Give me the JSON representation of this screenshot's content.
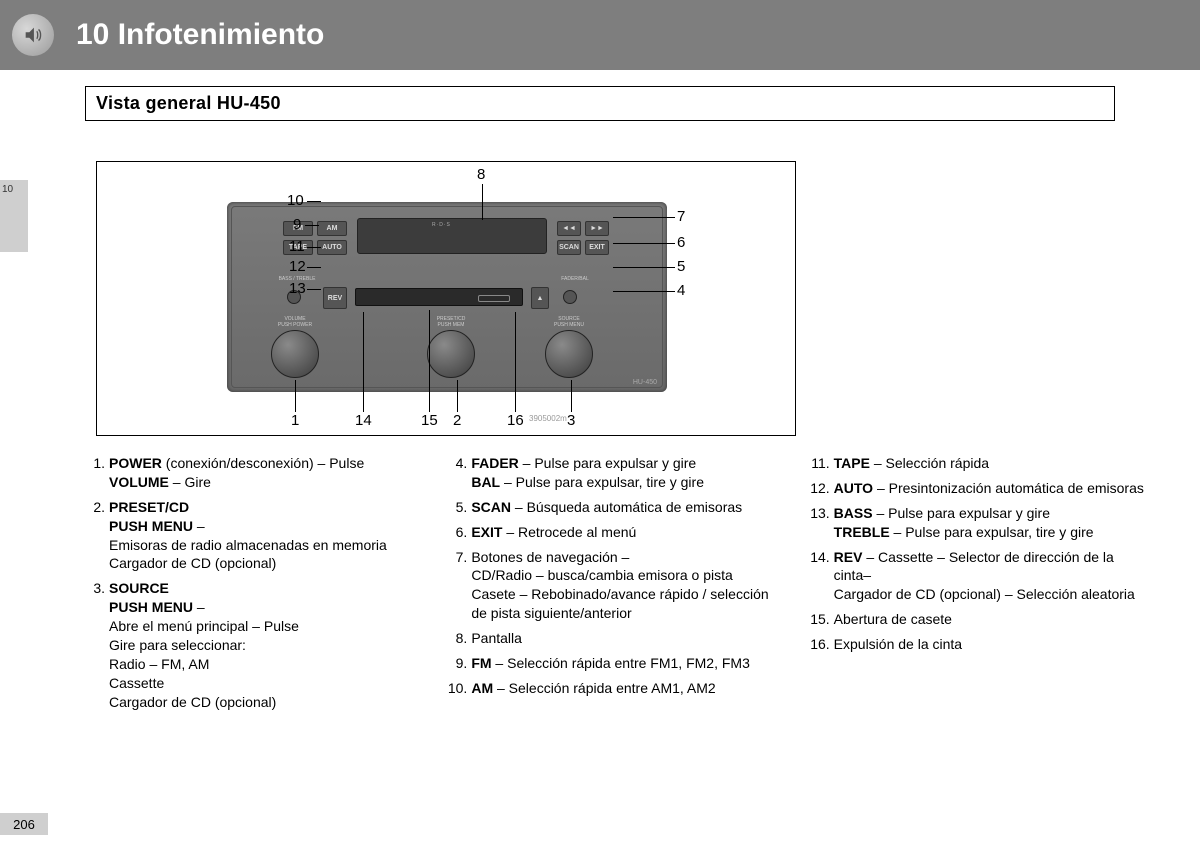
{
  "header": {
    "chapter": "10 Infotenimiento"
  },
  "subhead": "Vista general HU-450",
  "side_tab": "10",
  "page_number": "206",
  "diagram": {
    "model_label": "HU-450",
    "watermark": "3905002m",
    "display_badge": "R·D·S",
    "buttons": {
      "fm": "FM",
      "am": "AM",
      "tape": "TAPE",
      "auto": "AUTO",
      "rev": "REV",
      "scan": "SCAN",
      "exit": "EXIT",
      "prev": "◄◄",
      "next": "►►"
    },
    "knobs": {
      "volume": "VOLUME\nPUSH POWER",
      "preset": "PRESET/CD\nPUSH MEM",
      "source": "SOURCE\nPUSH MENU",
      "bass": "BASS / TREBLE",
      "fader": "FADER/BAL"
    },
    "eject": "▲",
    "callouts": [
      "1",
      "2",
      "3",
      "4",
      "5",
      "6",
      "7",
      "8",
      "9",
      "10",
      "11",
      "12",
      "13",
      "14",
      "15",
      "16"
    ]
  },
  "columns": [
    [
      {
        "n": "1.",
        "bold": [
          "POWER"
        ],
        "after_bold": " (conexión/desconexión) – Pulse",
        "lines": [
          {
            "bold": "VOLUME",
            "text": " – Gire"
          }
        ]
      },
      {
        "n": "2.",
        "bold": [
          "PRESET/CD"
        ],
        "lines": [
          {
            "bold": "PUSH MENU",
            "text": " –"
          },
          {
            "text": "Emisoras de radio almacenadas en memoria"
          },
          {
            "text": "Cargador de CD (opcional)"
          }
        ]
      },
      {
        "n": "3.",
        "bold": [
          "SOURCE"
        ],
        "lines": [
          {
            "bold": "PUSH MENU",
            "text": " –"
          },
          {
            "text": "Abre el menú principal – Pulse"
          },
          {
            "text": "Gire para seleccionar:"
          },
          {
            "text": "Radio – FM, AM"
          },
          {
            "text": "Cassette"
          },
          {
            "text": "Cargador de CD (opcional)"
          }
        ]
      }
    ],
    [
      {
        "n": "4.",
        "bold": [
          "FADER"
        ],
        "after_bold": " – Pulse para expulsar y gire",
        "lines": [
          {
            "bold": "BAL",
            "text": " – Pulse para expulsar, tire y gire"
          }
        ]
      },
      {
        "n": "5.",
        "bold": [
          "SCAN"
        ],
        "after_bold": " – Búsqueda automática de emisoras"
      },
      {
        "n": "6.",
        "bold": [
          "EXIT"
        ],
        "after_bold": " – Retrocede al menú"
      },
      {
        "n": "7.",
        "after_bold": "Botones de navegación –",
        "lines": [
          {
            "text": "CD/Radio – busca/cambia emisora o pista"
          },
          {
            "text": "Casete – Rebobinado/avance rápido / selección de pista siguiente/anterior"
          }
        ]
      },
      {
        "n": "8.",
        "after_bold": "Pantalla"
      },
      {
        "n": "9.",
        "bold": [
          "FM"
        ],
        "after_bold": " – Selección rápida entre FM1, FM2, FM3"
      },
      {
        "n": "10.",
        "bold": [
          "AM"
        ],
        "after_bold": " – Selección rápida entre AM1, AM2"
      }
    ],
    [
      {
        "n": "11.",
        "bold": [
          "TAPE"
        ],
        "after_bold": " – Selección rápida"
      },
      {
        "n": "12.",
        "bold": [
          "AUTO"
        ],
        "after_bold": " – Presintonización automática de emisoras"
      },
      {
        "n": "13.",
        "bold": [
          "BASS"
        ],
        "after_bold": " – Pulse para expulsar y gire",
        "lines": [
          {
            "bold": "TREBLE",
            "text": " – Pulse para expulsar, tire y gire"
          }
        ]
      },
      {
        "n": "14.",
        "bold": [
          "REV"
        ],
        "after_bold": " – Cassette – Selector de dirección de la cinta–",
        "lines": [
          {
            "text": "Cargador de CD (opcional) – Selección aleatoria"
          }
        ]
      },
      {
        "n": "15.",
        "after_bold": "Abertura de casete"
      },
      {
        "n": "16.",
        "after_bold": "Expulsión de la cinta"
      }
    ]
  ]
}
